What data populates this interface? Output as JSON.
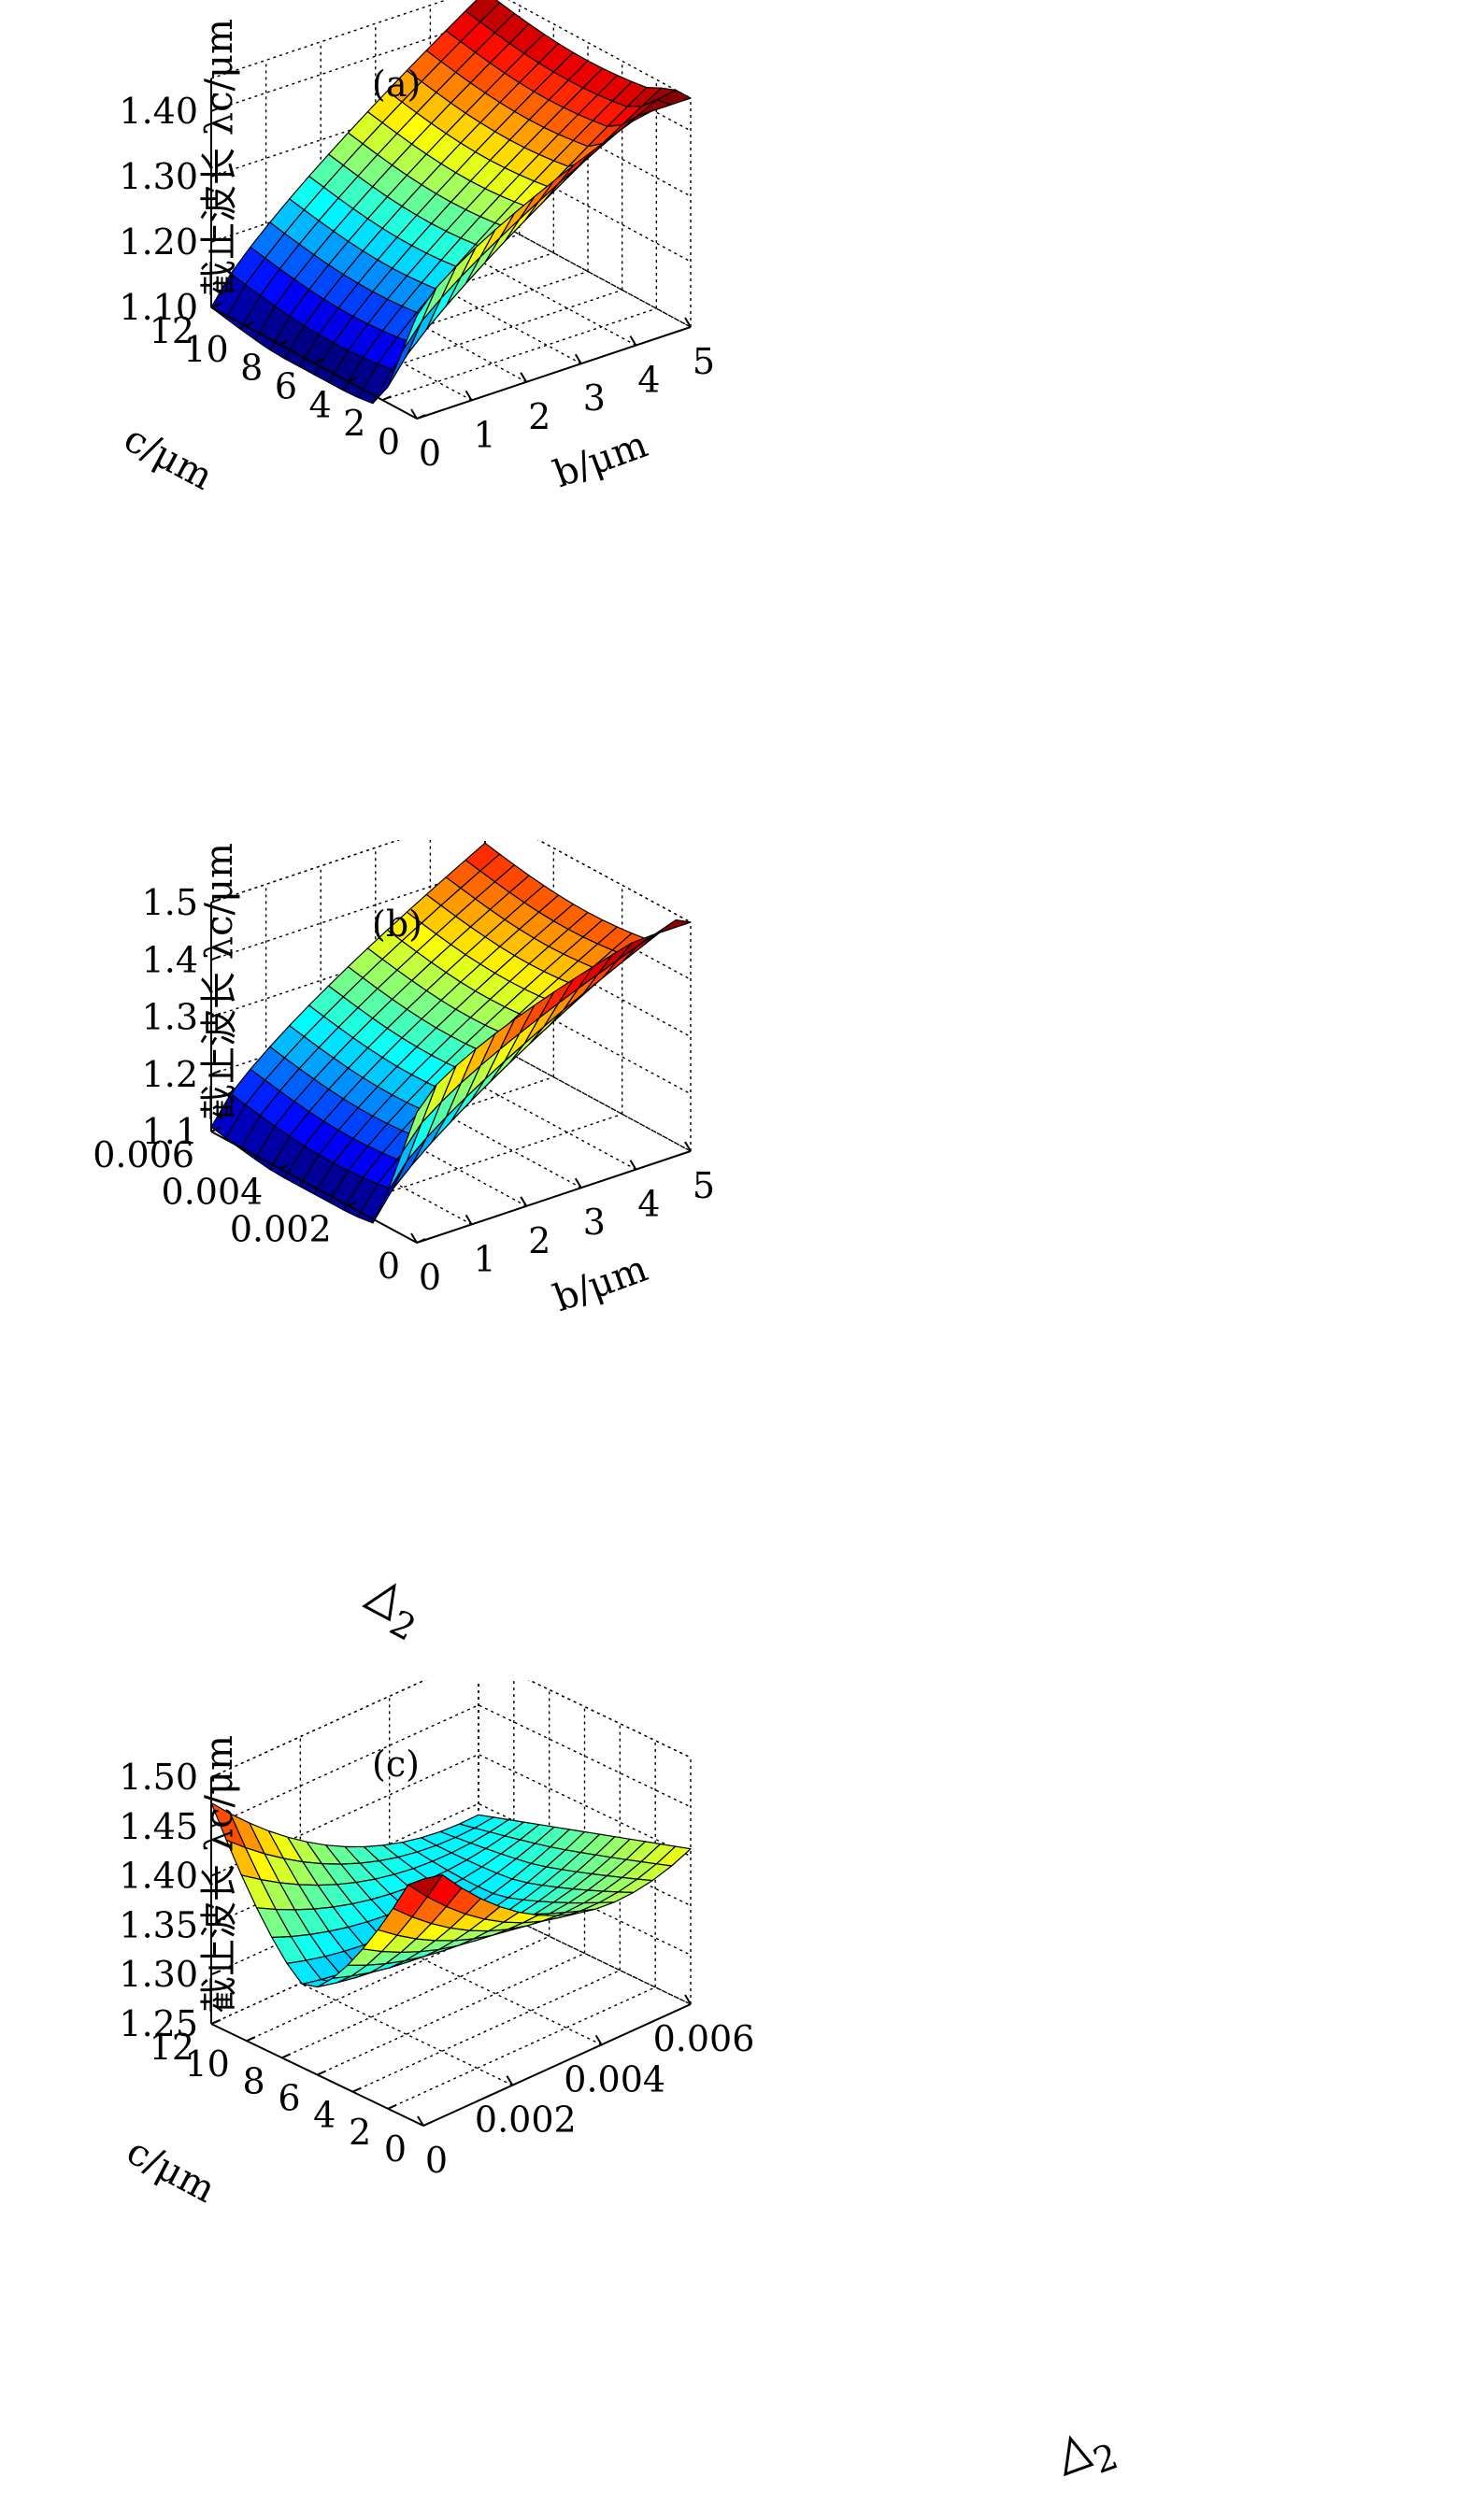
{
  "figure": {
    "panels": [
      {
        "label": "(a)",
        "zlabel": "截止波长 λc/μm",
        "xlabel": "b/μm",
        "ylabel": "c/μm",
        "dlabel": ""
      },
      {
        "label": "(b)",
        "zlabel": "截止波长 λc/μm",
        "xlabel": "b/μm",
        "ylabel": "",
        "dlabel": "2"
      },
      {
        "label": "(c)",
        "zlabel": "截止波长 λc/μm",
        "xlabel": "",
        "ylabel": "c/μm",
        "dlabel": "2"
      }
    ]
  },
  "chart_data": [
    {
      "type": "surface",
      "title": "(a)",
      "xlabel": "b/μm",
      "ylabel": "c/μm",
      "zlabel": "截止波长 λc/μm",
      "xlim": [
        0,
        5
      ],
      "ylim": [
        0,
        12
      ],
      "zlim": [
        1.1,
        1.45
      ],
      "xticks": [
        0,
        1,
        2,
        3,
        4,
        5
      ],
      "yticks": [
        0,
        2,
        4,
        6,
        8,
        10,
        12
      ],
      "zticks": [
        1.1,
        1.2,
        1.3,
        1.4
      ],
      "xtick_labels": [
        "0",
        "1",
        "2",
        "3",
        "4",
        "5"
      ],
      "ytick_labels": [
        "0",
        "2",
        "4",
        "6",
        "8",
        "10",
        "12"
      ],
      "ztick_labels": [
        "1.10",
        "1.20",
        "1.30",
        "1.40"
      ],
      "grid": true,
      "colormap": "jet",
      "grid_size": [
        14,
        14
      ],
      "surface": {
        "description_values": "approximate λc over b∈[0,5] μm, c∈[0,12] μm; a near-vertical wall appears for c below about 2 μm",
        "corner_values": {
          "b0_c12": 1.1,
          "b5_c12": 1.44,
          "b0_c0": 1.25,
          "b5_c0": 1.43,
          "b0_c2": 1.08,
          "b5_c2": 1.34
        }
      }
    },
    {
      "type": "surface",
      "title": "(b)",
      "xlabel": "b/μm",
      "ylabel": "Δ2",
      "zlabel": "截止波长 λc/μm",
      "xlim": [
        0,
        5
      ],
      "ylim": [
        0,
        0.006
      ],
      "zlim": [
        1.1,
        1.5
      ],
      "xticks": [
        0,
        1,
        2,
        3,
        4,
        5
      ],
      "yticks": [
        0,
        0.002,
        0.004,
        0.006
      ],
      "zticks": [
        1.1,
        1.2,
        1.3,
        1.4,
        1.5
      ],
      "xtick_labels": [
        "0",
        "1",
        "2",
        "3",
        "4",
        "5"
      ],
      "ytick_labels": [
        "0",
        "0.002",
        "0.004",
        "0.006"
      ],
      "ztick_labels": [
        "1.1",
        "1.2",
        "1.3",
        "1.4",
        "1.5"
      ],
      "grid": true,
      "colormap": "jet",
      "grid_size": [
        14,
        14
      ],
      "surface": {
        "corner_values": {
          "b0_d0.006": 1.1,
          "b5_d0.006": 1.44,
          "b0_d0": 1.25,
          "b5_d0": 1.4
        }
      }
    },
    {
      "type": "surface",
      "title": "(c)",
      "xlabel": "Δ2",
      "ylabel": "c/μm",
      "zlabel": "截止波长 λc/μm",
      "xlim": [
        0,
        0.006
      ],
      "ylim": [
        0,
        12
      ],
      "zlim": [
        1.25,
        1.5
      ],
      "xticks": [
        0,
        0.002,
        0.004,
        0.006
      ],
      "yticks": [
        0,
        2,
        4,
        6,
        8,
        10,
        12
      ],
      "zticks": [
        1.25,
        1.3,
        1.35,
        1.4,
        1.45,
        1.5
      ],
      "xtick_labels": [
        "0",
        "0.002",
        "0.004",
        "0.006"
      ],
      "ytick_labels": [
        "0",
        "2",
        "4",
        "6",
        "8",
        "10",
        "12"
      ],
      "ztick_labels": [
        "1.25",
        "1.30",
        "1.35",
        "1.40",
        "1.45",
        "1.50"
      ],
      "grid": true,
      "colormap": "jet",
      "grid_size": [
        14,
        14
      ],
      "surface": {
        "corner_values": {
          "d0_c12": 1.45,
          "d0.006_c12": 1.3,
          "d0_c0": 1.35,
          "d0.006_c0": 1.4
        }
      }
    }
  ]
}
